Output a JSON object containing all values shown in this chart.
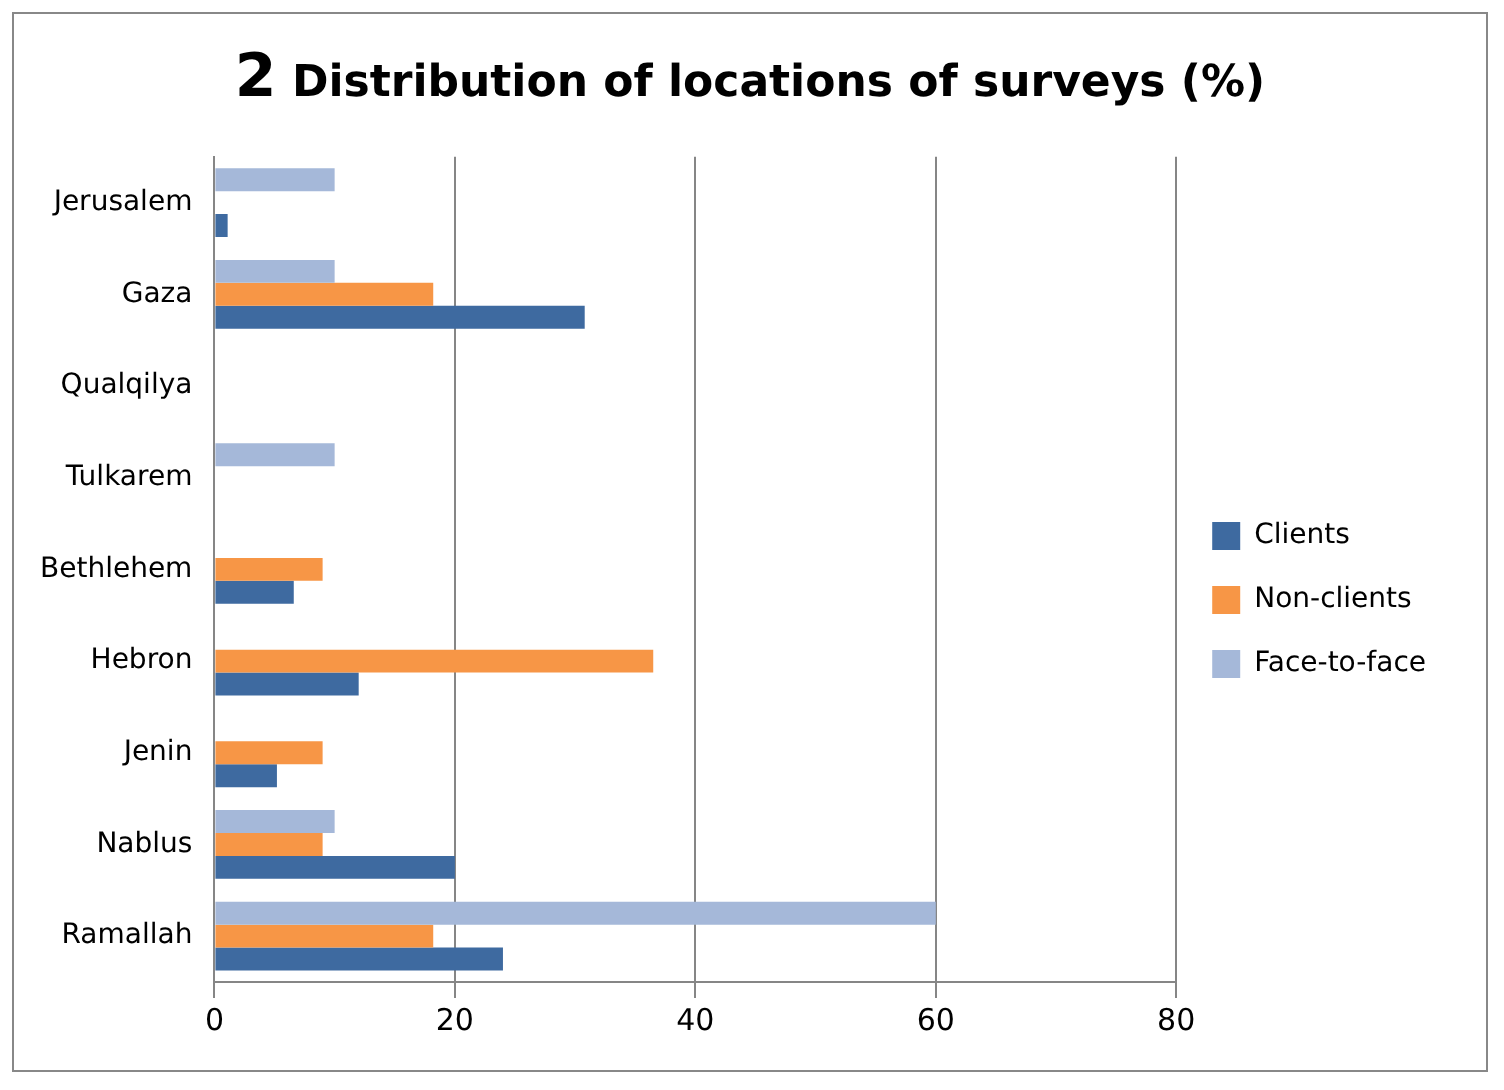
{
  "chart_data": {
    "type": "bar",
    "orientation": "horizontal",
    "title": "2 Distribution of locations of surveys (%)",
    "categories": [
      "Jerusalem",
      "Gaza",
      "Qualqilya",
      "Tulkarem",
      "Bethlehem",
      "Hebron",
      "Jenin",
      "Nablus",
      "Ramallah"
    ],
    "series": [
      {
        "name": "Face-to-face",
        "color": "#a5b8d9",
        "values": [
          10,
          10,
          null,
          10,
          null,
          null,
          null,
          10,
          60
        ]
      },
      {
        "name": "Non-clients",
        "color": "#f79646",
        "values": [
          null,
          18.2,
          null,
          null,
          9.0,
          36.5,
          9.0,
          9.0,
          18.2
        ]
      },
      {
        "name": "Clients",
        "color": "#3e6aa0",
        "values": [
          1.1,
          30.8,
          null,
          null,
          6.6,
          12.0,
          5.2,
          20,
          24.0
        ]
      }
    ],
    "xlim": [
      0,
      80
    ],
    "xticks": [
      0,
      20,
      40,
      60,
      80
    ],
    "grid": "x",
    "legend": "right"
  }
}
